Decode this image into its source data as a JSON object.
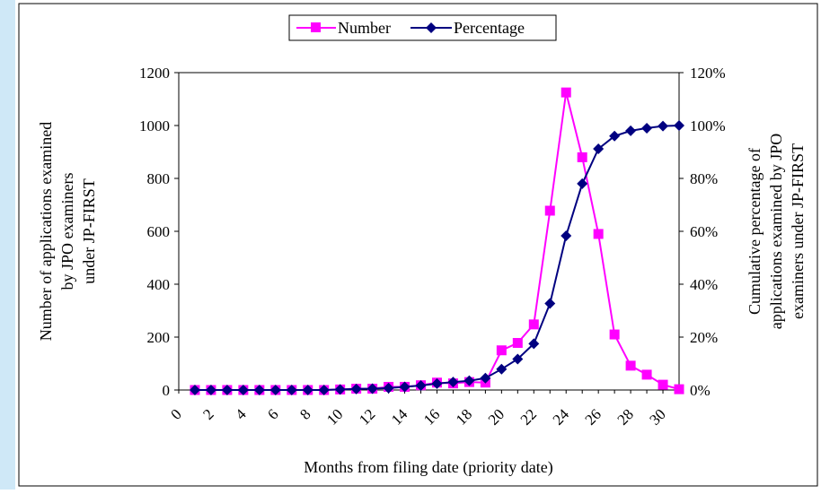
{
  "colors": {
    "number_series": "#ff00ff",
    "percentage_series": "#000080",
    "left_strip": "#cfe8f7"
  },
  "chart_data": {
    "type": "line",
    "x_axis": {
      "label": "Months from filing date (priority date)",
      "range": [
        0,
        31
      ],
      "tick_labels": [
        "0",
        "2",
        "4",
        "6",
        "8",
        "10",
        "12",
        "14",
        "16",
        "18",
        "20",
        "22",
        "24",
        "26",
        "28",
        "30"
      ]
    },
    "y_left": {
      "label_lines": [
        "Number of applications examined",
        "by JPO examiners",
        "under JP-FIRST"
      ],
      "range": [
        0,
        1200
      ],
      "tick_labels": [
        "0",
        "200",
        "400",
        "600",
        "800",
        "1000",
        "1200"
      ]
    },
    "y_right": {
      "label_lines": [
        "Cumulative percentage of",
        "applications examined by JPO",
        "examiners under JP-FIRST"
      ],
      "range": [
        0,
        1.2
      ],
      "tick_labels": [
        "0%",
        "20%",
        "40%",
        "60%",
        "80%",
        "100%",
        "120%"
      ]
    },
    "legend": {
      "position": "top",
      "entries": [
        "Number",
        "Percentage"
      ]
    },
    "x": [
      1,
      2,
      3,
      4,
      5,
      6,
      7,
      8,
      9,
      10,
      11,
      12,
      13,
      14,
      15,
      16,
      17,
      18,
      19,
      20,
      21,
      22,
      23,
      24,
      25,
      26,
      27,
      28,
      29,
      30,
      31
    ],
    "series": [
      {
        "name": "Number",
        "axis": "left",
        "marker": "square",
        "values": [
          0,
          0,
          0,
          0,
          0,
          0,
          0,
          0,
          0,
          2,
          5,
          5,
          12,
          12,
          18,
          28,
          25,
          30,
          28,
          150,
          178,
          248,
          678,
          1125,
          880,
          590,
          210,
          92,
          58,
          20,
          3
        ]
      },
      {
        "name": "Percentage",
        "axis": "right",
        "marker": "diamond",
        "values": [
          0,
          0,
          0,
          0,
          0,
          0,
          0,
          0,
          0,
          0.002,
          0.004,
          0.005,
          0.007,
          0.012,
          0.017,
          0.024,
          0.03,
          0.035,
          0.045,
          0.079,
          0.117,
          0.175,
          0.327,
          0.583,
          0.78,
          0.912,
          0.96,
          0.98,
          0.99,
          0.998,
          1.0
        ]
      }
    ]
  }
}
